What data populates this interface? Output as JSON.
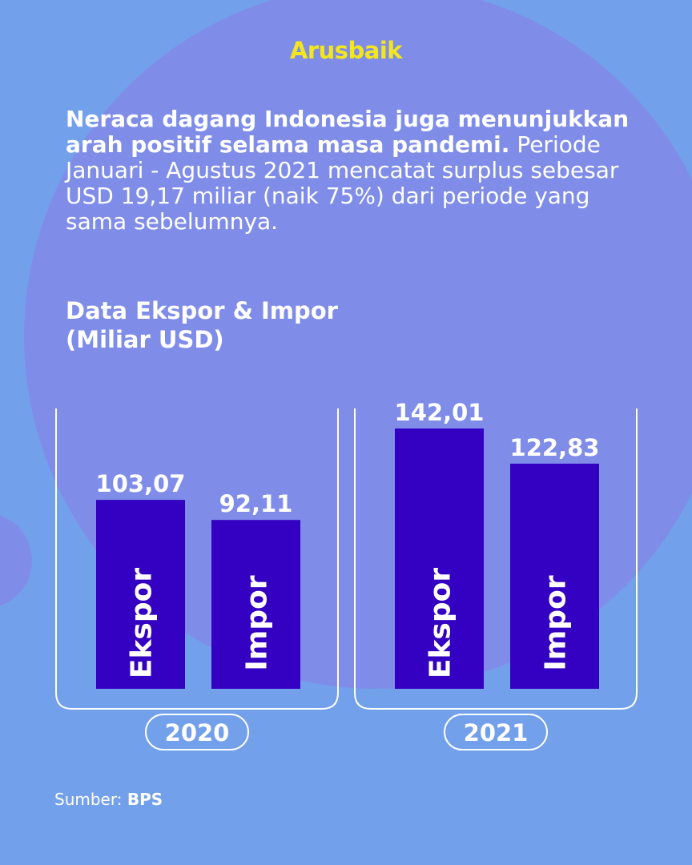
{
  "brand": "Arusbaik",
  "intro": {
    "bold": "Neraca dagang Indonesia juga menunjukkan arah positif selama masa pandemi.",
    "text": "Periode Januari - Agustus 2021 mencatat surplus sebesar USD 19,17 miliar (naik 75%) dari periode yang sama sebelumnya."
  },
  "chart_data": {
    "type": "bar",
    "title": "Data Ekspor & Impor",
    "subtitle": "(Miliar USD)",
    "categories": [
      "2020",
      "2021"
    ],
    "series": [
      {
        "name": "Ekspor",
        "color": "#3400c2",
        "values": [
          103.07,
          142.01
        ],
        "value_labels": [
          "103,07",
          "142,01"
        ]
      },
      {
        "name": "Impor",
        "color": "#3400c2",
        "values": [
          92.11,
          122.83
        ],
        "value_labels": [
          "92,11",
          "122,83"
        ]
      }
    ]
  },
  "source": {
    "label": "Sumber:",
    "name": "BPS"
  }
}
